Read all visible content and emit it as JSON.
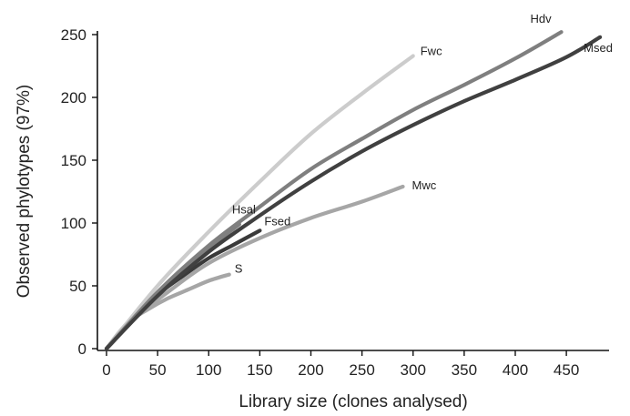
{
  "chart_data": {
    "type": "line",
    "title": "",
    "xlabel": "Library size (clones analysed)",
    "ylabel": "Observed phylotypes (97%)",
    "xlim": [
      0,
      490
    ],
    "ylim": [
      0,
      250
    ],
    "x_ticks": [
      0,
      50,
      100,
      150,
      200,
      250,
      300,
      350,
      400,
      450
    ],
    "x_tick_labels": [
      "0",
      "50",
      "100",
      "150",
      "200",
      "250",
      "300",
      "350",
      "400",
      "450"
    ],
    "y_ticks": [
      0,
      50,
      100,
      150,
      200,
      250
    ],
    "y_tick_labels": [
      "0",
      "50",
      "100",
      "150",
      "200",
      "250"
    ],
    "grid": false,
    "legend": "labels at curve ends",
    "series": [
      {
        "name": "S",
        "color": "#a6a6a6",
        "points": [
          [
            0,
            0
          ],
          [
            20,
            20
          ],
          [
            40,
            31
          ],
          [
            60,
            40
          ],
          [
            80,
            47
          ],
          [
            100,
            54
          ],
          [
            120,
            59
          ]
        ]
      },
      {
        "name": "Fsed",
        "color": "#3a3a3a",
        "points": [
          [
            0,
            0
          ],
          [
            25,
            24
          ],
          [
            50,
            43
          ],
          [
            75,
            58
          ],
          [
            100,
            72
          ],
          [
            125,
            83
          ],
          [
            150,
            94
          ]
        ]
      },
      {
        "name": "Mwc",
        "color": "#a6a6a6",
        "points": [
          [
            0,
            0
          ],
          [
            30,
            26
          ],
          [
            60,
            45
          ],
          [
            100,
            68
          ],
          [
            150,
            88
          ],
          [
            200,
            104
          ],
          [
            250,
            117
          ],
          [
            290,
            129
          ]
        ]
      },
      {
        "name": "Hsal",
        "color": "#7f7f7f",
        "points": [
          [
            0,
            0
          ],
          [
            30,
            29
          ],
          [
            60,
            52
          ],
          [
            100,
            80
          ],
          [
            130,
            99
          ]
        ]
      },
      {
        "name": "Fwc",
        "color": "#cccccc",
        "points": [
          [
            0,
            0
          ],
          [
            50,
            50
          ],
          [
            100,
            93
          ],
          [
            150,
            133
          ],
          [
            200,
            171
          ],
          [
            250,
            203
          ],
          [
            300,
            233
          ]
        ]
      },
      {
        "name": "Hdv",
        "color": "#7f7f7f",
        "points": [
          [
            0,
            0
          ],
          [
            50,
            45
          ],
          [
            100,
            82
          ],
          [
            150,
            113
          ],
          [
            200,
            143
          ],
          [
            250,
            167
          ],
          [
            300,
            190
          ],
          [
            350,
            210
          ],
          [
            400,
            231
          ],
          [
            445,
            252
          ]
        ]
      },
      {
        "name": "Msed",
        "color": "#404040",
        "points": [
          [
            0,
            0
          ],
          [
            50,
            42
          ],
          [
            100,
            77
          ],
          [
            150,
            106
          ],
          [
            200,
            133
          ],
          [
            250,
            157
          ],
          [
            300,
            178
          ],
          [
            350,
            197
          ],
          [
            400,
            214
          ],
          [
            450,
            232
          ],
          [
            483,
            248
          ]
        ]
      }
    ]
  }
}
